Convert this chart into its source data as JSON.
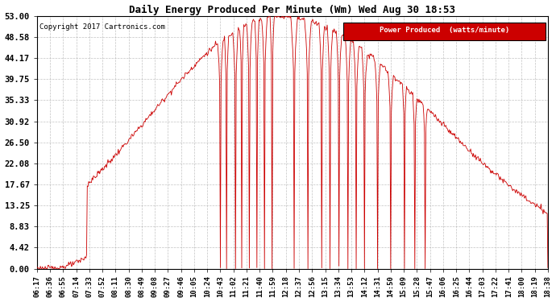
{
  "title": "Daily Energy Produced Per Minute (Wm) Wed Aug 30 18:53",
  "copyright": "Copyright 2017 Cartronics.com",
  "legend_label": "Power Produced  (watts/minute)",
  "legend_bg": "#cc0000",
  "legend_fg": "#ffffff",
  "line_color": "#cc0000",
  "bg_color": "#ffffff",
  "grid_color": "#aaaaaa",
  "yticks": [
    0.0,
    4.42,
    8.83,
    13.25,
    17.67,
    22.08,
    26.5,
    30.92,
    35.33,
    39.75,
    44.17,
    48.58,
    53.0
  ],
  "ymax": 53.0,
  "xtick_labels": [
    "06:17",
    "06:36",
    "06:55",
    "07:14",
    "07:33",
    "07:52",
    "08:11",
    "08:30",
    "08:49",
    "09:08",
    "09:27",
    "09:46",
    "10:05",
    "10:24",
    "10:43",
    "11:02",
    "11:21",
    "11:40",
    "11:59",
    "12:18",
    "12:37",
    "12:56",
    "13:15",
    "13:34",
    "13:53",
    "14:12",
    "14:31",
    "14:50",
    "15:09",
    "15:28",
    "15:47",
    "16:06",
    "16:25",
    "16:44",
    "17:03",
    "17:22",
    "17:41",
    "18:00",
    "18:19",
    "18:38"
  ],
  "dip_centers_times": [
    "10:43",
    "10:52",
    "11:05",
    "11:14",
    "11:25",
    "11:36",
    "11:47",
    "11:58",
    "12:30",
    "12:50",
    "13:10",
    "13:22",
    "13:35",
    "13:48",
    "14:00",
    "14:12",
    "14:31",
    "14:50",
    "15:10",
    "15:25",
    "15:40"
  ],
  "dip_widths": [
    6,
    5,
    6,
    5,
    6,
    5,
    6,
    5,
    8,
    8,
    6,
    6,
    6,
    6,
    6,
    6,
    6,
    6,
    5,
    5,
    4
  ]
}
